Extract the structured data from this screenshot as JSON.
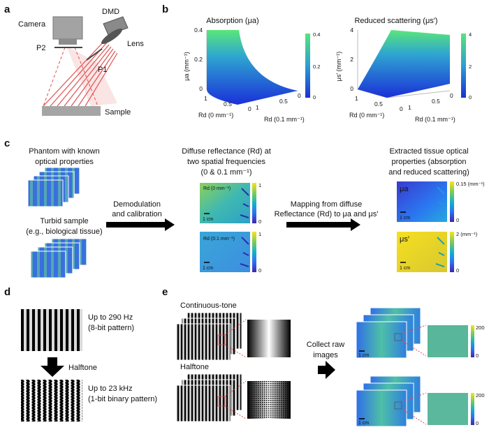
{
  "panel_labels": {
    "a": "a",
    "b": "b",
    "c": "c",
    "d": "d",
    "e": "e"
  },
  "panel_a": {
    "camera": "Camera",
    "dmd": "DMD",
    "lens": "Lens",
    "p1": "P1",
    "p2": "P2",
    "sample": "Sample"
  },
  "panel_b": {
    "absorption": {
      "title": "Absorption (μa)",
      "zlabel": "μa (mm⁻¹)",
      "x_label": "Rd (0 mm⁻¹)",
      "y_label": "Rd (0.1 mm⁻¹)",
      "z_ticks": [
        "0",
        "0.2",
        "0.4"
      ],
      "x_ticks": [
        "1",
        "0.5",
        "0"
      ],
      "y_ticks": [
        "0",
        "0.5",
        "1"
      ],
      "colorbar": [
        "0.4",
        "0.2",
        "0"
      ]
    },
    "scattering": {
      "title": "Reduced scattering (μs′)",
      "zlabel": "μs′ (mm⁻¹)",
      "x_label": "Rd (0 mm⁻¹)",
      "y_label": "Rd (0.1 mm⁻¹)",
      "z_ticks": [
        "0",
        "2",
        "4"
      ],
      "x_ticks": [
        "1",
        "0.5",
        "0"
      ],
      "y_ticks": [
        "0",
        "0.5",
        "1"
      ],
      "colorbar": [
        "4",
        "2",
        "0"
      ]
    }
  },
  "panel_c": {
    "phantom_line1": "Phantom with known",
    "phantom_line2": "optical properties",
    "turbid_line1": "Turbid sample",
    "turbid_line2": "(e.g., biological tissue)",
    "diffuse_line1": "Diffuse reflectance (Rd) at",
    "diffuse_line2": "two spatial frequencies",
    "diffuse_line3": "(0 & 0.1 mm⁻¹)",
    "demod_line1": "Demodulation",
    "demod_line2": "and calibration",
    "mapping_line1": "Mapping from diffuse",
    "mapping_line2": "Reflectance (Rd) to μa and μs′",
    "extracted_line1": "Extracted tissue optical",
    "extracted_line2": "properties (absorption",
    "extracted_line3": "and reduced scattering)",
    "rd0_label": "Rd (0 mm⁻¹)",
    "rd01_label": "Rd (0.1 mm⁻¹)",
    "mua_label": "μa",
    "mus_label": "μs′",
    "scale": "1 cm",
    "rd0_cb_top": "1",
    "rd0_cb_bottom": "0",
    "rd01_cb_top": "1",
    "rd01_cb_bottom": "0",
    "mua_cb_top": "0.15 (mm⁻¹)",
    "mua_cb_bottom": "0",
    "mus_cb_top": "2 (mm⁻¹)",
    "mus_cb_bottom": "0"
  },
  "panel_d": {
    "top_line1": "Up to 290 Hz",
    "top_line2": "(8-bit pattern)",
    "halftone": "Halftone",
    "bottom_line1": "Up to 23 kHz",
    "bottom_line2": "(1-bit binary pattern)"
  },
  "panel_e": {
    "continuous": "Continuous-tone",
    "halftone": "Halftone",
    "collect_line1": "Collect raw",
    "collect_line2": "images",
    "scale": "1 cm",
    "cb_top": "200",
    "cb_bottom": "0"
  },
  "colors": {
    "accent_blue": "#2a45d8",
    "surface_green": "#4fe07a",
    "laser_red": "#e05050"
  }
}
